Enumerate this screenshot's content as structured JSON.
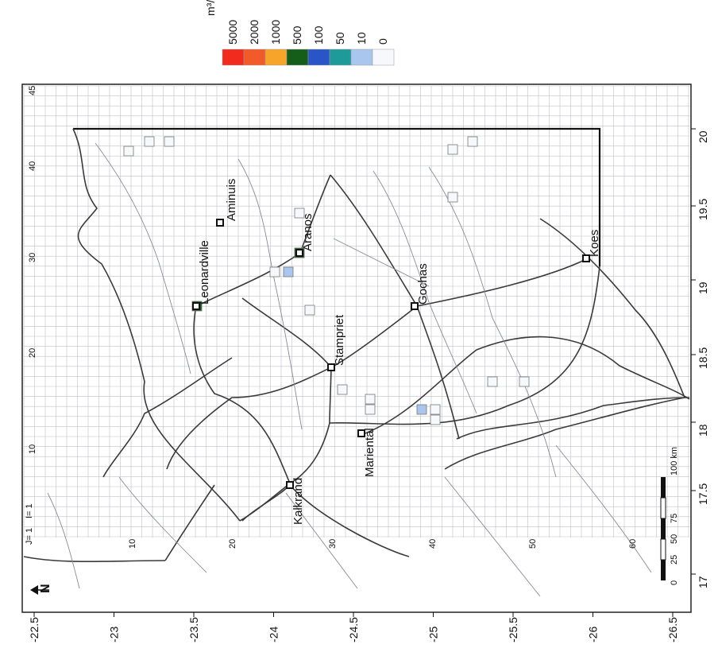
{
  "legend": {
    "unit": "m³/d",
    "classes": [
      {
        "label": "5000",
        "color": "#f22b1f"
      },
      {
        "label": "2000",
        "color": "#f25a2a"
      },
      {
        "label": "1000",
        "color": "#f7a42a"
      },
      {
        "label": "500",
        "color": "#155e1a"
      },
      {
        "label": "100",
        "color": "#2a55c8"
      },
      {
        "label": "50",
        "color": "#1f9a9a"
      },
      {
        "label": "10",
        "color": "#a8c6ee"
      },
      {
        "label": "0",
        "color": "#f6f8fc"
      }
    ]
  },
  "axes": {
    "latitude_ticks": [
      "-22.5",
      "-23",
      "-23.5",
      "-24",
      "-24.5",
      "-25",
      "-25.5",
      "-26",
      "-26.5"
    ],
    "longitude_ticks": [
      "17",
      "17.5",
      "18",
      "18.5",
      "19",
      "19.5",
      "20"
    ],
    "grid_column_ticks": [
      "10",
      "20",
      "30",
      "40",
      "45"
    ],
    "grid_row_ticks": [
      "10",
      "20",
      "30",
      "40",
      "50",
      "60"
    ],
    "grid_origin_labels": [
      "J= 1",
      "I= 1"
    ]
  },
  "towns": [
    "Aminuis",
    "Leonardville",
    "Aranos",
    "Stampriet",
    "Gochas",
    "Koes",
    "Mariental",
    "Kalkrand"
  ],
  "scale_bar": {
    "labels": [
      "0",
      "25",
      "50",
      "75",
      "100 km"
    ]
  },
  "north_arrow": {
    "label": "N"
  }
}
